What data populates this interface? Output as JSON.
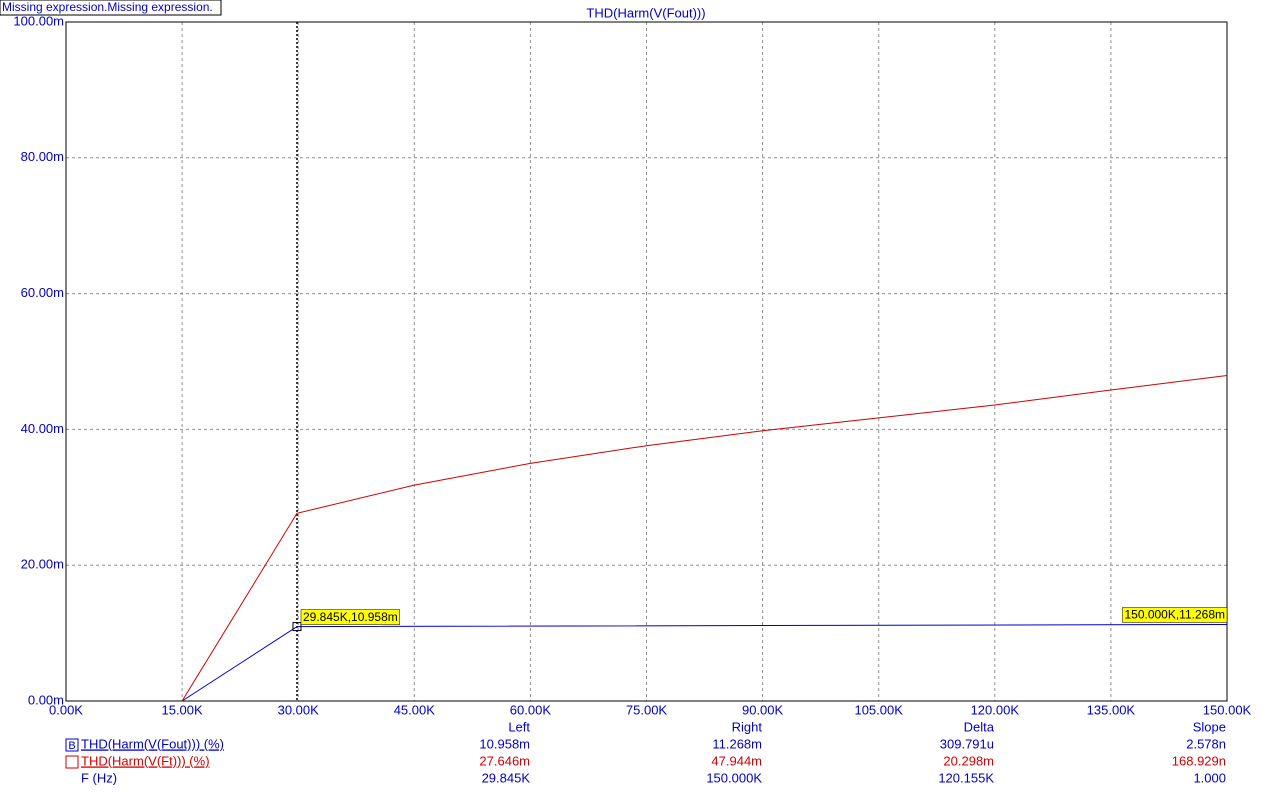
{
  "chart_data": {
    "type": "line",
    "status_text": "Missing expression.Missing expression.",
    "title": "THD(Harm(V(Fout)))",
    "xlim": [
      0,
      150000
    ],
    "xticks": [
      {
        "value": 0,
        "label": "0.00K"
      },
      {
        "value": 15000,
        "label": "15.00K"
      },
      {
        "value": 30000,
        "label": "30.00K"
      },
      {
        "value": 45000,
        "label": "45.00K"
      },
      {
        "value": 60000,
        "label": "60.00K"
      },
      {
        "value": 75000,
        "label": "75.00K"
      },
      {
        "value": 90000,
        "label": "90.00K"
      },
      {
        "value": 105000,
        "label": "105.00K"
      },
      {
        "value": 120000,
        "label": "120.00K"
      },
      {
        "value": 135000,
        "label": "135.00K"
      },
      {
        "value": 150000,
        "label": "150.00K"
      }
    ],
    "ylim": [
      0,
      0.1
    ],
    "yticks": [
      {
        "value": 0,
        "label": "0.00m"
      },
      {
        "value": 0.02,
        "label": "20.00m"
      },
      {
        "value": 0.04,
        "label": "40.00m"
      },
      {
        "value": 0.06,
        "label": "60.00m"
      },
      {
        "value": 0.08,
        "label": "80.00m"
      },
      {
        "value": 0.1,
        "label": "100.00m"
      }
    ],
    "grid": true,
    "series": [
      {
        "name": "THD(Harm(V(Fout))) (%)",
        "color": "#0000c8",
        "x": [
          15000,
          29845,
          150000
        ],
        "values": [
          0,
          0.010958,
          0.011268
        ]
      },
      {
        "name": "THD(Harm(V(Ft))) (%)",
        "color": "#d00000",
        "x": [
          15000,
          29845,
          45000,
          60000,
          75000,
          90000,
          105000,
          120000,
          135000,
          150000
        ],
        "values": [
          0,
          0.027646,
          0.0318,
          0.035,
          0.0376,
          0.0398,
          0.0417,
          0.0436,
          0.0458,
          0.047944
        ]
      }
    ],
    "cursor_labels": [
      "29.845K,10.958m",
      "150.000K,11.268m"
    ],
    "readout": {
      "columns": [
        "Left",
        "Right",
        "Delta",
        "Slope"
      ],
      "selected_marker": "B",
      "series_rows": [
        [
          "10.958m",
          "11.268m",
          "309.791u",
          "2.578n"
        ],
        [
          "27.646m",
          "47.944m",
          "20.298m",
          "168.929n"
        ]
      ],
      "x_label": "F (Hz)",
      "x_row": [
        "29.845K",
        "150.000K",
        "120.155K",
        "1.000"
      ]
    }
  }
}
